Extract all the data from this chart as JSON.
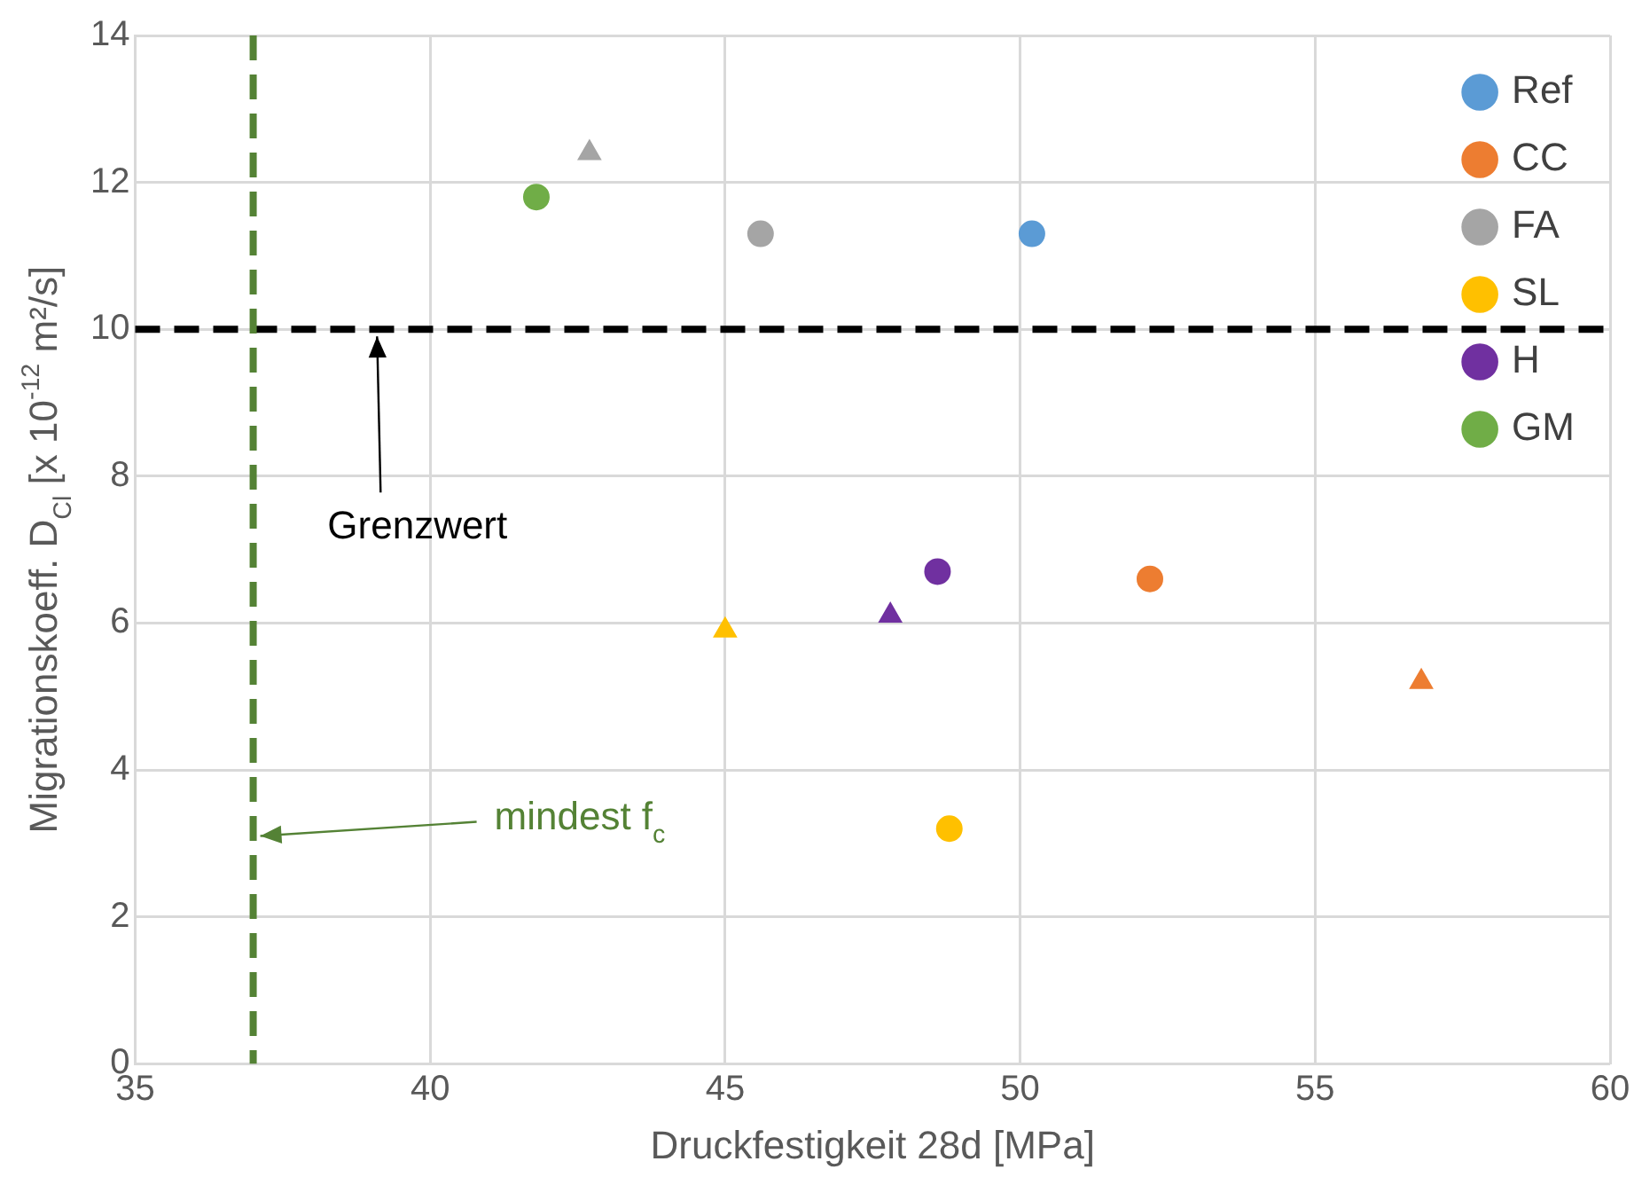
{
  "chart_data": {
    "type": "scatter",
    "xlabel": "Druckfestigkeit 28d [MPa]",
    "ylabel": "Migrationskoeff. D$_{Cl}$ [x 10$^{-12}$ m²/s]",
    "xlim": [
      35,
      60
    ],
    "xticks": [
      35,
      40,
      45,
      50,
      55,
      60
    ],
    "ylim": [
      0,
      14
    ],
    "yticks": [
      0,
      2,
      4,
      6,
      8,
      10,
      12,
      14
    ],
    "grid": true,
    "legend": "top right",
    "marker": "circle",
    "series": [
      {
        "name": "Ref",
        "color": "#5b9bd5",
        "x": [
          50.2
        ],
        "values": [
          11.3
        ]
      },
      {
        "name": "CC",
        "color": "#ed7d31",
        "x": [
          52.2
        ],
        "values": [
          6.6
        ]
      },
      {
        "name": "FA",
        "color": "#a5a5a5",
        "x": [
          45.6
        ],
        "values": [
          11.3
        ]
      },
      {
        "name": "SL",
        "color": "#ffc000",
        "x": [
          48.8
        ],
        "values": [
          3.2
        ]
      },
      {
        "name": "H",
        "color": "#7030a0",
        "x": [
          48.6
        ],
        "values": [
          6.7
        ]
      },
      {
        "name": "GM",
        "color": "#70ad47",
        "x": [
          41.8
        ],
        "values": [
          11.8
        ]
      },
      {
        "color": "#ed7d31",
        "marker": "triangle",
        "x": [
          56.8
        ],
        "values": [
          5.2
        ]
      },
      {
        "color": "#a5a5a5",
        "marker": "triangle",
        "x": [
          42.7
        ],
        "values": [
          12.4
        ]
      },
      {
        "color": "#ffc000",
        "marker": "triangle",
        "x": [
          45.0
        ],
        "values": [
          5.9
        ]
      },
      {
        "color": "#7030a0",
        "marker": "triangle",
        "x": [
          47.8
        ],
        "values": [
          6.1
        ]
      }
    ],
    "ref_lines": [
      {
        "axis": "y",
        "value": 10,
        "color": "#000000",
        "line_style": "dashed"
      },
      {
        "axis": "x",
        "value": 37,
        "color": "#548235",
        "line_style": "dashed"
      }
    ],
    "annotations": [
      {
        "text": "Grenzwert",
        "x": 39.1,
        "y": 10
      },
      {
        "text": "mindest f$_{c}$",
        "x": 37,
        "y": 3.1
      }
    ]
  }
}
